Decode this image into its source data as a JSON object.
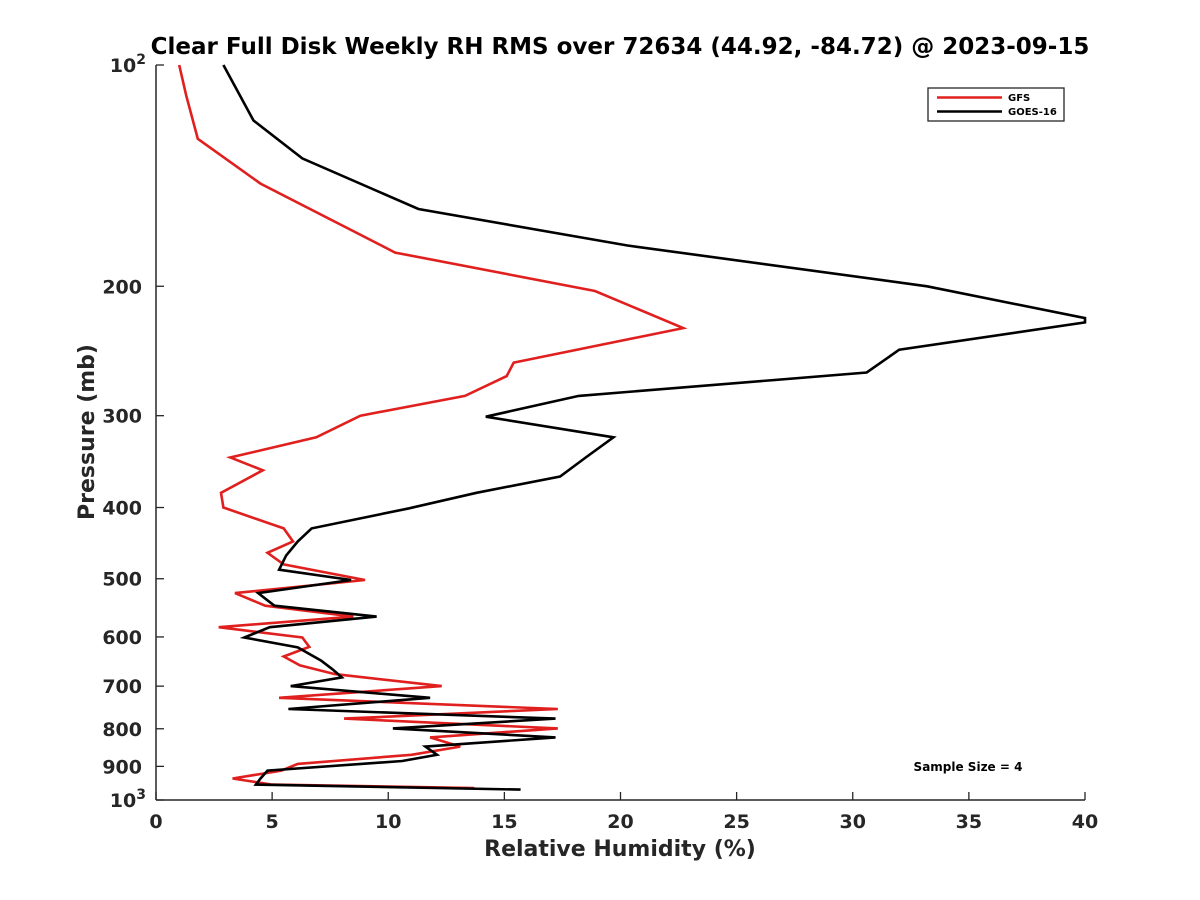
{
  "chart_data": {
    "type": "line",
    "title": "Clear Full Disk Weekly RH RMS over 72634 (44.92, -84.72) @ 2023-09-15",
    "xlabel": "Relative Humidity (%)",
    "ylabel": "Pressure (mb)",
    "xlim": [
      0,
      40
    ],
    "ylim": [
      100,
      1000
    ],
    "yscale": "log",
    "yreversed": true,
    "grid": false,
    "legend_position": "top-right",
    "x_ticks": [
      "0",
      "5",
      "10",
      "15",
      "20",
      "25",
      "30",
      "35",
      "40"
    ],
    "y_ticks": [
      {
        "value": 200,
        "label": "200"
      },
      {
        "value": 300,
        "label": "300"
      },
      {
        "value": 400,
        "label": "400"
      },
      {
        "value": 500,
        "label": "500"
      },
      {
        "value": 600,
        "label": "600"
      },
      {
        "value": 700,
        "label": "700"
      },
      {
        "value": 800,
        "label": "800"
      },
      {
        "value": 900,
        "label": "900"
      }
    ],
    "y_power_ticks": [
      {
        "value": 100,
        "base": "10",
        "exp": "2"
      },
      {
        "value": 1000,
        "base": "10",
        "exp": "3"
      }
    ],
    "annotation": "Sample Size = 4",
    "series": [
      {
        "name": "GFS",
        "color": "#e0201e",
        "points": [
          [
            1.0,
            100
          ],
          [
            1.3,
            110
          ],
          [
            1.8,
            126
          ],
          [
            4.5,
            145
          ],
          [
            10.3,
            180
          ],
          [
            18.9,
            203
          ],
          [
            22.7,
            228
          ],
          [
            15.4,
            254
          ],
          [
            15.1,
            265
          ],
          [
            13.3,
            282
          ],
          [
            8.8,
            300
          ],
          [
            6.9,
            321
          ],
          [
            3.2,
            342
          ],
          [
            4.6,
            356
          ],
          [
            2.8,
            382
          ],
          [
            2.9,
            400
          ],
          [
            5.5,
            427
          ],
          [
            5.9,
            445
          ],
          [
            4.8,
            461
          ],
          [
            5.5,
            478
          ],
          [
            9.0,
            502
          ],
          [
            3.4,
            523
          ],
          [
            4.7,
            544
          ],
          [
            8.5,
            563
          ],
          [
            2.7,
            582
          ],
          [
            6.3,
            601
          ],
          [
            6.6,
            619
          ],
          [
            5.5,
            638
          ],
          [
            6.2,
            656
          ],
          [
            7.7,
            674
          ],
          [
            12.3,
            700
          ],
          [
            5.3,
            726
          ],
          [
            17.3,
            752
          ],
          [
            8.1,
            775
          ],
          [
            17.3,
            799
          ],
          [
            11.8,
            822
          ],
          [
            13.1,
            846
          ],
          [
            11.0,
            868
          ],
          [
            6.1,
            893
          ],
          [
            5.4,
            912
          ],
          [
            3.3,
            935
          ],
          [
            5.0,
            953
          ],
          [
            13.7,
            963
          ]
        ]
      },
      {
        "name": "GOES-16",
        "color": "#000000",
        "points": [
          [
            2.9,
            100
          ],
          [
            4.2,
            119
          ],
          [
            6.3,
            134
          ],
          [
            11.3,
            157
          ],
          [
            20.3,
            176
          ],
          [
            33.2,
            200
          ],
          [
            40.0,
            221
          ],
          [
            40.0,
            224
          ],
          [
            32.0,
            244
          ],
          [
            30.6,
            262
          ],
          [
            18.2,
            282
          ],
          [
            14.2,
            301
          ],
          [
            19.7,
            321
          ],
          [
            18.5,
            342
          ],
          [
            17.4,
            363
          ],
          [
            13.8,
            382
          ],
          [
            10.9,
            401
          ],
          [
            6.7,
            427
          ],
          [
            6.1,
            445
          ],
          [
            5.6,
            465
          ],
          [
            5.3,
            486
          ],
          [
            8.4,
            502
          ],
          [
            4.4,
            523
          ],
          [
            5.1,
            544
          ],
          [
            9.5,
            563
          ],
          [
            4.9,
            582
          ],
          [
            3.8,
            601
          ],
          [
            6.1,
            620
          ],
          [
            7.1,
            646
          ],
          [
            7.6,
            664
          ],
          [
            8.0,
            681
          ],
          [
            5.8,
            700
          ],
          [
            11.8,
            726
          ],
          [
            5.7,
            752
          ],
          [
            17.2,
            775
          ],
          [
            10.2,
            799
          ],
          [
            17.2,
            822
          ],
          [
            11.6,
            846
          ],
          [
            12.1,
            868
          ],
          [
            10.6,
            885
          ],
          [
            4.8,
            912
          ],
          [
            4.5,
            935
          ],
          [
            4.3,
            953
          ],
          [
            15.7,
            968
          ]
        ]
      }
    ]
  }
}
